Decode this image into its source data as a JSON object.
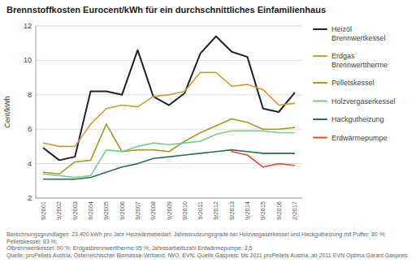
{
  "chart_data": {
    "type": "line",
    "title": "Brennstoffkosten Eurocent/kWh für ein durchschnittliches Einfamilienhaus",
    "ylabel": "Cent/kWh",
    "categories": [
      "9/2001",
      "9/2002",
      "9/2003",
      "9/2004",
      "9/2005",
      "9/2006",
      "9/2007",
      "9/2008",
      "9/2009",
      "9/2010",
      "9/2011",
      "9/2012",
      "9/2013",
      "9/2014",
      "9/2015",
      "9/2016",
      "2/2017"
    ],
    "ylim": [
      2,
      12
    ],
    "yticks": [
      2,
      4,
      6,
      8,
      10,
      12
    ],
    "grid": true,
    "legend": "right",
    "series": [
      {
        "name": "Heizöl\nBrennwertkessel",
        "color": "#222222",
        "values": [
          4.9,
          4.2,
          4.4,
          8.2,
          8.2,
          8.0,
          10.6,
          7.9,
          7.4,
          8.1,
          10.4,
          11.4,
          10.5,
          10.2,
          7.2,
          7.0,
          8.1
        ]
      },
      {
        "name": "Erdgas\nBrennwerttherme",
        "color": "#c8a030",
        "values": [
          5.2,
          5.0,
          5.0,
          6.3,
          7.2,
          7.4,
          7.3,
          7.9,
          8.0,
          8.2,
          9.3,
          9.3,
          8.5,
          8.6,
          8.3,
          7.4,
          7.5
        ]
      },
      {
        "name": "Pelletskessel",
        "color": "#a0a020",
        "values": [
          3.5,
          3.4,
          4.1,
          4.2,
          6.3,
          4.7,
          4.8,
          4.8,
          4.7,
          5.3,
          5.8,
          6.2,
          6.6,
          6.4,
          6.0,
          6.0,
          6.1
        ]
      },
      {
        "name": "Holzvergaserkessel",
        "color": "#70d090",
        "values": [
          3.4,
          3.3,
          3.2,
          3.3,
          4.8,
          4.7,
          5.0,
          5.2,
          5.1,
          5.2,
          5.3,
          5.7,
          5.9,
          5.9,
          5.9,
          5.8,
          5.8
        ]
      },
      {
        "name": "Hackgutheizung",
        "color": "#2a7050",
        "values": [
          3.1,
          3.1,
          3.1,
          3.2,
          3.5,
          3.8,
          4.0,
          4.3,
          4.4,
          4.5,
          4.6,
          4.7,
          4.8,
          4.7,
          4.6,
          4.6,
          4.6
        ]
      },
      {
        "name": "Erdwärmepumpe",
        "color": "#e05020",
        "values": [
          null,
          null,
          null,
          null,
          null,
          null,
          null,
          null,
          null,
          null,
          null,
          null,
          4.7,
          4.5,
          3.8,
          4.0,
          3.9
        ]
      }
    ],
    "annotations": [
      "Berechnungsgrundlagen: 23.400 kWh pro Jahr Heizwärmebedarf, Jahresnutzungsgrade bei Holzvergaserkessel und Hackgutheizung mit Puffer: 80 %; Pelletskessel: 83 %;",
      "Ölbrennwertkessel: 90 %; Erdgasbrennwerttherme 95 %; Jahresarbeitszahl Erdwärmepumpe: 3,5",
      "Quelle: proPellets Austria, Österreichischer Biomasse-Verband, IWO, EVN; Quelle Gaspreis: bis 2011 proPellets Austria, ab 2011 EVN Optima Garant Gaspreis"
    ]
  }
}
